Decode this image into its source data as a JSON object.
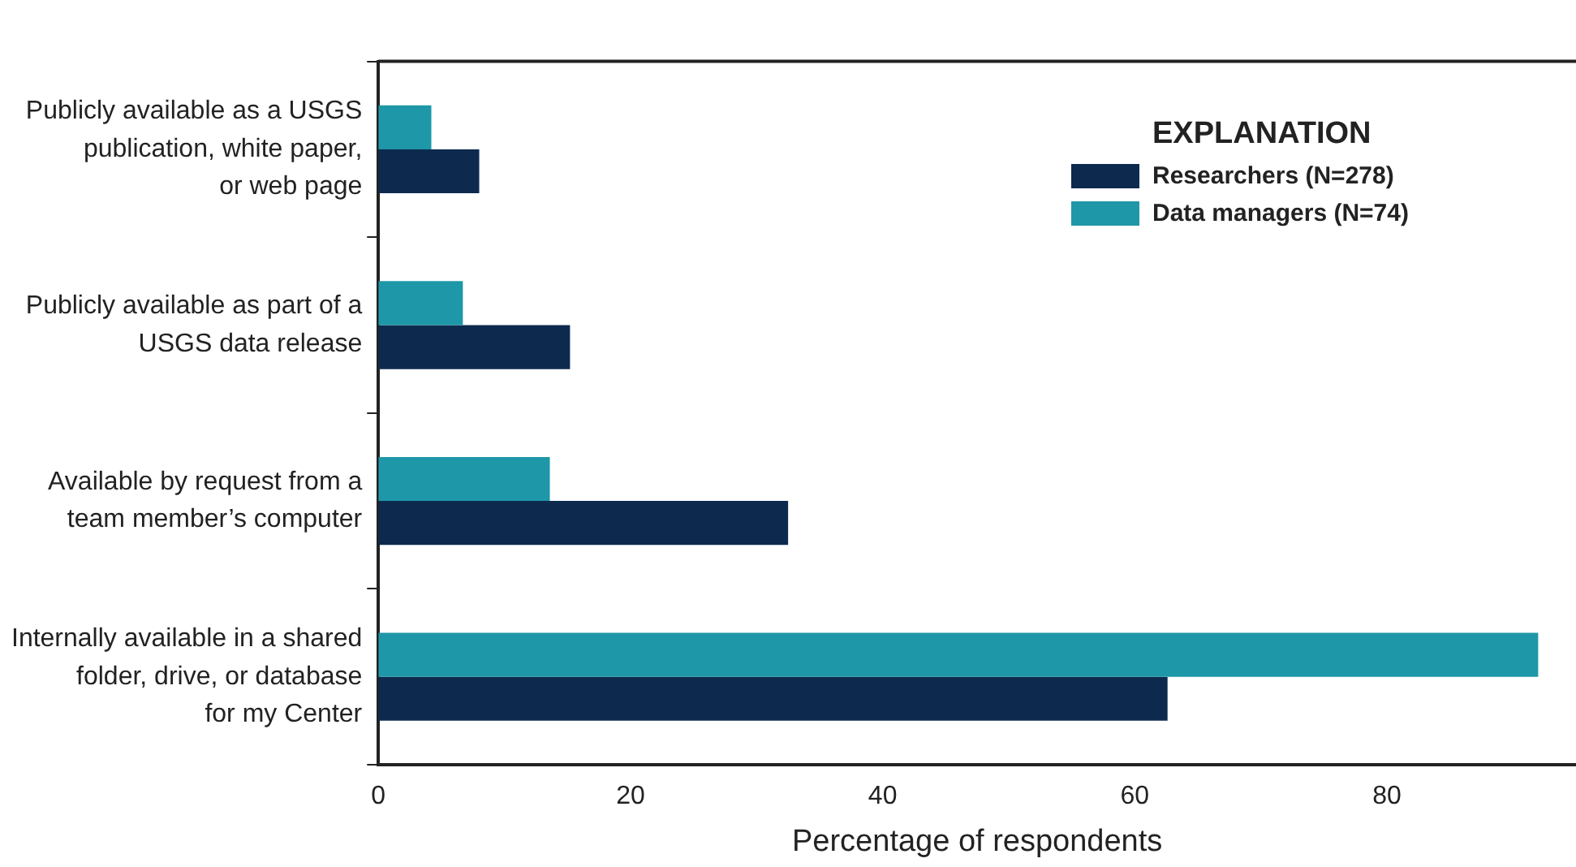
{
  "chart_data": {
    "type": "bar",
    "orientation": "horizontal",
    "xlabel": "Percentage of respondents",
    "legend_title": "EXPLANATION",
    "legend": "top right",
    "grid": false,
    "categories": [
      "Publicly available as a USGS\npublication, white paper,\nor web page",
      "Publicly available as part of a\nUSGS data release",
      "Available by request from a\nteam member’s computer",
      "Internally available in a shared\nfolder, drive, or database\nfor my Center"
    ],
    "series": [
      {
        "name": "Researchers (N=278)",
        "color": "#0d2a4e",
        "values": [
          8.0,
          15.2,
          32.5,
          62.6
        ]
      },
      {
        "name": "Data managers (N=74)",
        "color": "#1e97a8",
        "values": [
          4.2,
          6.7,
          13.6,
          92.0
        ]
      }
    ],
    "xlim": [
      0,
      95
    ],
    "xticks": [
      0,
      20,
      40,
      60,
      80
    ]
  }
}
